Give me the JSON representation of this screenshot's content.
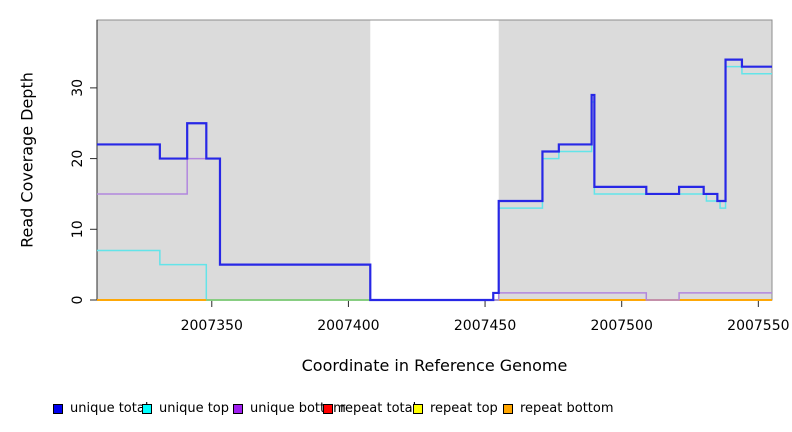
{
  "figure": {
    "x_title": "Coordinate in Reference Genome",
    "y_title": "Read Coverage Depth"
  },
  "legend": {
    "items": [
      {
        "label": "unique total",
        "color": "#0000EE"
      },
      {
        "label": "unique top",
        "color": "#00FFFF"
      },
      {
        "label": "unique bottom",
        "color": "#A020F0"
      },
      {
        "label": "repeat total",
        "color": "#FF0000"
      },
      {
        "label": "repeat top",
        "color": "#FFFF00"
      },
      {
        "label": "repeat bottom",
        "color": "#FFA500"
      }
    ]
  },
  "chart_data": {
    "type": "line",
    "subtype": "step-after",
    "title": "",
    "xlabel": "Coordinate in Reference Genome",
    "ylabel": "Read Coverage Depth",
    "xlim": [
      2007308,
      2007555
    ],
    "ylim": [
      0,
      39.6
    ],
    "x_ticks": [
      2007350,
      2007400,
      2007450,
      2007500,
      2007550
    ],
    "y_ticks": [
      0,
      10,
      20,
      30
    ],
    "grid": false,
    "legend_position": "bottom",
    "plot_background": "#ffffff",
    "shaded_regions": [
      {
        "x0": 2007308,
        "x1": 2007408,
        "color": "#DBDBDB"
      },
      {
        "x0": 2007455,
        "x1": 2007555,
        "color": "#DBDBDB"
      }
    ],
    "series": [
      {
        "name": "repeat total",
        "color": "#E00000",
        "width": 1.4,
        "segments": [
          [
            [
              2007308,
              0
            ],
            [
              2007555,
              0
            ]
          ]
        ]
      },
      {
        "name": "repeat top",
        "color": "#FFFF00",
        "width": 1.4,
        "segments": [
          [
            [
              2007308,
              0
            ],
            [
              2007555,
              0
            ]
          ]
        ]
      },
      {
        "name": "unique top",
        "color": "#63E4E9",
        "width": 1.5,
        "segments": [
          [
            [
              2007308,
              7
            ],
            [
              2007331,
              5
            ],
            [
              2007348,
              0
            ],
            [
              2007455,
              13
            ],
            [
              2007471,
              20
            ],
            [
              2007477,
              21
            ],
            [
              2007489,
              28
            ],
            [
              2007490,
              15
            ],
            [
              2007531,
              14
            ],
            [
              2007536,
              13
            ],
            [
              2007538,
              33
            ],
            [
              2007544,
              32
            ],
            [
              2007555,
              32
            ]
          ]
        ]
      },
      {
        "name": "unlabeled green",
        "color": "#7CCD7C",
        "width": 1.6,
        "segments": [
          [
            [
              2007348,
              0
            ],
            [
              2007455,
              0
            ]
          ]
        ]
      },
      {
        "name": "repeat bottom",
        "color": "#FFA500",
        "width": 1.8,
        "segments": [
          [
            [
              2007308,
              0
            ],
            [
              2007348,
              0
            ]
          ],
          [
            [
              2007455,
              0
            ],
            [
              2007555,
              0
            ]
          ]
        ]
      },
      {
        "name": "unique bottom",
        "color": "#B287DE",
        "width": 1.5,
        "segments": [
          [
            [
              2007308,
              15
            ],
            [
              2007341,
              20
            ],
            [
              2007353,
              5
            ],
            [
              2007408,
              0
            ],
            [
              2007455,
              1
            ],
            [
              2007509,
              0
            ],
            [
              2007521,
              1
            ],
            [
              2007555,
              1
            ]
          ]
        ]
      },
      {
        "name": "unique total",
        "color": "#2727E6",
        "width": 2.2,
        "segments": [
          [
            [
              2007308,
              22
            ],
            [
              2007331,
              20
            ],
            [
              2007341,
              25
            ],
            [
              2007348,
              20
            ],
            [
              2007353,
              5
            ],
            [
              2007408,
              0
            ],
            [
              2007453,
              1
            ],
            [
              2007455,
              14
            ],
            [
              2007471,
              21
            ],
            [
              2007477,
              22
            ],
            [
              2007489,
              29
            ],
            [
              2007490,
              16
            ],
            [
              2007509,
              15
            ],
            [
              2007521,
              16
            ],
            [
              2007530,
              15
            ],
            [
              2007535,
              14
            ],
            [
              2007538,
              34
            ],
            [
              2007544,
              33
            ],
            [
              2007555,
              33
            ]
          ]
        ]
      }
    ]
  }
}
